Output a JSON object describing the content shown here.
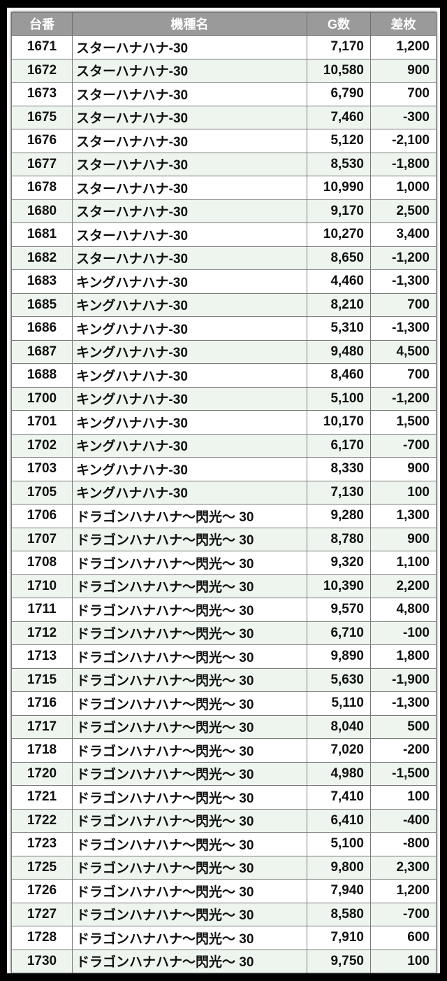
{
  "headers": {
    "id": "台番",
    "name": "機種名",
    "games": "G数",
    "diff": "差枚"
  },
  "colors": {
    "header_bg": "#9a9a9a",
    "row_alt": "#eef5ee",
    "row": "#ffffff"
  },
  "rows": [
    {
      "id": "1671",
      "name": "スターハナハナ-30",
      "games": "7,170",
      "diff": "1,200"
    },
    {
      "id": "1672",
      "name": "スターハナハナ-30",
      "games": "10,580",
      "diff": "900"
    },
    {
      "id": "1673",
      "name": "スターハナハナ-30",
      "games": "6,790",
      "diff": "700"
    },
    {
      "id": "1675",
      "name": "スターハナハナ-30",
      "games": "7,460",
      "diff": "-300"
    },
    {
      "id": "1676",
      "name": "スターハナハナ-30",
      "games": "5,120",
      "diff": "-2,100"
    },
    {
      "id": "1677",
      "name": "スターハナハナ-30",
      "games": "8,530",
      "diff": "-1,800"
    },
    {
      "id": "1678",
      "name": "スターハナハナ-30",
      "games": "10,990",
      "diff": "1,000"
    },
    {
      "id": "1680",
      "name": "スターハナハナ-30",
      "games": "9,170",
      "diff": "2,500"
    },
    {
      "id": "1681",
      "name": "スターハナハナ-30",
      "games": "10,270",
      "diff": "3,400"
    },
    {
      "id": "1682",
      "name": "スターハナハナ-30",
      "games": "8,650",
      "diff": "-1,200"
    },
    {
      "id": "1683",
      "name": "キングハナハナ-30",
      "games": "4,460",
      "diff": "-1,300"
    },
    {
      "id": "1685",
      "name": "キングハナハナ-30",
      "games": "8,210",
      "diff": "700"
    },
    {
      "id": "1686",
      "name": "キングハナハナ-30",
      "games": "5,310",
      "diff": "-1,300"
    },
    {
      "id": "1687",
      "name": "キングハナハナ-30",
      "games": "9,480",
      "diff": "4,500"
    },
    {
      "id": "1688",
      "name": "キングハナハナ-30",
      "games": "8,460",
      "diff": "700"
    },
    {
      "id": "1700",
      "name": "キングハナハナ-30",
      "games": "5,100",
      "diff": "-1,200"
    },
    {
      "id": "1701",
      "name": "キングハナハナ-30",
      "games": "10,170",
      "diff": "1,500"
    },
    {
      "id": "1702",
      "name": "キングハナハナ-30",
      "games": "6,170",
      "diff": "-700"
    },
    {
      "id": "1703",
      "name": "キングハナハナ-30",
      "games": "8,330",
      "diff": "900"
    },
    {
      "id": "1705",
      "name": "キングハナハナ-30",
      "games": "7,130",
      "diff": "100"
    },
    {
      "id": "1706",
      "name": "ドラゴンハナハナ～閃光～ 30",
      "games": "9,280",
      "diff": "1,300"
    },
    {
      "id": "1707",
      "name": "ドラゴンハナハナ～閃光～ 30",
      "games": "8,780",
      "diff": "900"
    },
    {
      "id": "1708",
      "name": "ドラゴンハナハナ～閃光～ 30",
      "games": "9,320",
      "diff": "1,100"
    },
    {
      "id": "1710",
      "name": "ドラゴンハナハナ～閃光～ 30",
      "games": "10,390",
      "diff": "2,200"
    },
    {
      "id": "1711",
      "name": "ドラゴンハナハナ～閃光～ 30",
      "games": "9,570",
      "diff": "4,800"
    },
    {
      "id": "1712",
      "name": "ドラゴンハナハナ～閃光～ 30",
      "games": "6,710",
      "diff": "-100"
    },
    {
      "id": "1713",
      "name": "ドラゴンハナハナ～閃光～ 30",
      "games": "9,890",
      "diff": "1,800"
    },
    {
      "id": "1715",
      "name": "ドラゴンハナハナ～閃光～ 30",
      "games": "5,630",
      "diff": "-1,900"
    },
    {
      "id": "1716",
      "name": "ドラゴンハナハナ～閃光～ 30",
      "games": "5,110",
      "diff": "-1,300"
    },
    {
      "id": "1717",
      "name": "ドラゴンハナハナ～閃光～ 30",
      "games": "8,040",
      "diff": "500"
    },
    {
      "id": "1718",
      "name": "ドラゴンハナハナ～閃光～ 30",
      "games": "7,020",
      "diff": "-200"
    },
    {
      "id": "1720",
      "name": "ドラゴンハナハナ～閃光～ 30",
      "games": "4,980",
      "diff": "-1,500"
    },
    {
      "id": "1721",
      "name": "ドラゴンハナハナ～閃光～ 30",
      "games": "7,410",
      "diff": "100"
    },
    {
      "id": "1722",
      "name": "ドラゴンハナハナ～閃光～ 30",
      "games": "6,410",
      "diff": "-400"
    },
    {
      "id": "1723",
      "name": "ドラゴンハナハナ～閃光～ 30",
      "games": "5,100",
      "diff": "-800"
    },
    {
      "id": "1725",
      "name": "ドラゴンハナハナ～閃光～ 30",
      "games": "9,800",
      "diff": "2,300"
    },
    {
      "id": "1726",
      "name": "ドラゴンハナハナ～閃光～ 30",
      "games": "7,940",
      "diff": "1,200"
    },
    {
      "id": "1727",
      "name": "ドラゴンハナハナ～閃光～ 30",
      "games": "8,580",
      "diff": "-700"
    },
    {
      "id": "1728",
      "name": "ドラゴンハナハナ～閃光～ 30",
      "games": "7,910",
      "diff": "600"
    },
    {
      "id": "1730",
      "name": "ドラゴンハナハナ～閃光～ 30",
      "games": "9,750",
      "diff": "100"
    }
  ]
}
